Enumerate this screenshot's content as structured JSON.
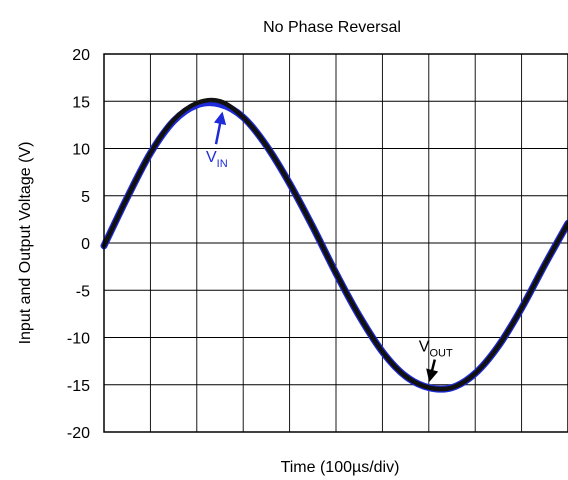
{
  "chart_data": {
    "type": "line",
    "title": "No Phase Reversal",
    "xlabel": "Time (100µs/div)",
    "ylabel": "Input and Output Voltage (V)",
    "ylim": [
      -20,
      20
    ],
    "xlim": [
      0,
      10
    ],
    "x_divisions": 10,
    "yticks": [
      "20",
      "15",
      "10",
      "5",
      "0",
      "-5",
      "-10",
      "-15",
      "-20"
    ],
    "grid": true,
    "series": [
      {
        "name": "VIN",
        "color": "#1f2bd9",
        "x": [
          0,
          0.5,
          1,
          1.5,
          2,
          2.5,
          3,
          3.5,
          4,
          4.5,
          5,
          5.5,
          6,
          6.5,
          7,
          7.5,
          8,
          8.5,
          9,
          9.5,
          10
        ],
        "y": [
          -0.3,
          4.8,
          9.5,
          12.9,
          14.6,
          14.7,
          13.3,
          10.3,
          6.3,
          1.7,
          -3.2,
          -7.7,
          -11.5,
          -14.1,
          -15.3,
          -15.3,
          -13.8,
          -10.9,
          -6.9,
          -2.3,
          2.1
        ]
      },
      {
        "name": "VOUT",
        "color": "#111111",
        "x": [
          0,
          0.5,
          1,
          1.5,
          2,
          2.5,
          3,
          3.5,
          4,
          4.5,
          5,
          5.5,
          6,
          6.5,
          7,
          7.5,
          8,
          8.5,
          9,
          9.5,
          10
        ],
        "y": [
          -0.3,
          4.8,
          9.5,
          13.0,
          14.8,
          15.0,
          13.3,
          10.3,
          6.3,
          1.7,
          -3.2,
          -7.7,
          -11.5,
          -14.1,
          -15.3,
          -15.3,
          -13.8,
          -10.9,
          -6.9,
          -2.3,
          2.1
        ]
      }
    ],
    "annotations": [
      {
        "series": "VIN",
        "main": "V",
        "sub": "IN",
        "color": "#1f2bd9"
      },
      {
        "series": "VOUT",
        "main": "V",
        "sub": "OUT",
        "color": "#000000"
      }
    ]
  }
}
